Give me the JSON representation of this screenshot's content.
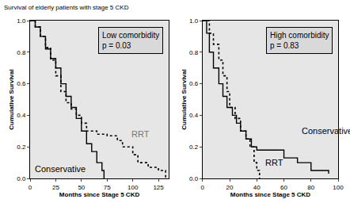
{
  "title": "Survival of elderly patients with stage 5 CKD",
  "chart_data": [
    {
      "type": "step",
      "annotations": [
        "Low comorbidity",
        "p = 0.03"
      ],
      "xlabel": "Months since Stage 5 CKD",
      "ylabel": "Cumulative Survival",
      "xlim": [
        0,
        135
      ],
      "xticks": [
        0,
        25,
        50,
        75,
        100,
        125
      ],
      "ylim": [
        0,
        1.0
      ],
      "yticks": [
        {
          "value": 0,
          "label": "0.0"
        },
        {
          "value": 0.2,
          "label": "0.2"
        },
        {
          "value": 0.4,
          "label": "0.4"
        },
        {
          "value": 0.6,
          "label": "0.6"
        },
        {
          "value": 0.8,
          "label": "0.8"
        },
        {
          "value": 1.0,
          "label": "1.0"
        }
      ],
      "series": [
        {
          "name": "Conservative",
          "color": "#000000",
          "line_style": "solid",
          "x": [
            0,
            5,
            10,
            15,
            20,
            25,
            30,
            35,
            40,
            45,
            50,
            55,
            60,
            65,
            70,
            72
          ],
          "values": [
            1.0,
            0.96,
            0.9,
            0.82,
            0.76,
            0.7,
            0.6,
            0.52,
            0.45,
            0.38,
            0.3,
            0.22,
            0.17,
            0.1,
            0.05,
            0.0
          ]
        },
        {
          "name": "RRT",
          "color": "#000000",
          "line_style": "dot",
          "x": [
            0,
            5,
            10,
            15,
            20,
            25,
            30,
            35,
            40,
            45,
            50,
            55,
            65,
            75,
            85,
            90,
            100,
            105,
            115,
            125,
            132
          ],
          "values": [
            1.0,
            0.96,
            0.9,
            0.83,
            0.75,
            0.65,
            0.55,
            0.48,
            0.44,
            0.4,
            0.35,
            0.3,
            0.28,
            0.27,
            0.24,
            0.2,
            0.15,
            0.1,
            0.07,
            0.05,
            0.0
          ]
        }
      ]
    },
    {
      "type": "step",
      "annotations": [
        "High comorbidity",
        "p = 0.83"
      ],
      "xlabel": "Months since Stage 5 CKD",
      "ylabel": "Cumulative Survival",
      "xlim": [
        0,
        100
      ],
      "xticks": [
        0,
        20,
        40,
        60,
        80,
        100
      ],
      "ylim": [
        0,
        1.0
      ],
      "yticks": [
        {
          "value": 0,
          "label": "0.0"
        },
        {
          "value": 0.2,
          "label": "0.2"
        },
        {
          "value": 0.4,
          "label": "0.4"
        },
        {
          "value": 0.6,
          "label": "0.6"
        },
        {
          "value": 0.8,
          "label": "0.8"
        },
        {
          "value": 1.0,
          "label": "1.0"
        }
      ],
      "series": [
        {
          "name": "Conservative",
          "color": "#000000",
          "line_style": "solid",
          "x": [
            0,
            3,
            5,
            8,
            12,
            15,
            18,
            22,
            25,
            28,
            32,
            36,
            40,
            55,
            60,
            70,
            80,
            93
          ],
          "values": [
            1.0,
            0.92,
            0.8,
            0.7,
            0.6,
            0.52,
            0.45,
            0.4,
            0.35,
            0.3,
            0.25,
            0.2,
            0.18,
            0.18,
            0.13,
            0.1,
            0.05,
            0.03
          ]
        },
        {
          "name": "RRT",
          "color": "#000000",
          "line_style": "dot",
          "x": [
            0,
            5,
            8,
            12,
            15,
            18,
            20,
            24,
            28,
            32,
            35,
            38,
            40,
            42
          ],
          "values": [
            1.0,
            0.92,
            0.85,
            0.75,
            0.65,
            0.55,
            0.45,
            0.38,
            0.3,
            0.25,
            0.2,
            0.1,
            0.05,
            0.0
          ]
        }
      ]
    }
  ]
}
